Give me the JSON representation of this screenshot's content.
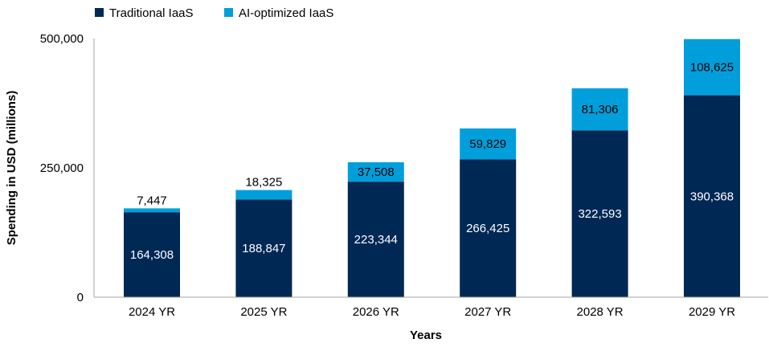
{
  "chart_data": {
    "type": "bar",
    "stacked": true,
    "title": "",
    "xlabel": "Years",
    "ylabel": "Spending in USD (millions)",
    "ylim": [
      0,
      500000
    ],
    "yticks": [
      0,
      250000,
      500000
    ],
    "ytick_labels": [
      "0",
      "250,000",
      "500,000"
    ],
    "grid": false,
    "legend_position": "top-left",
    "categories": [
      "2024 YR",
      "2025 YR",
      "2026 YR",
      "2027 YR",
      "2028 YR",
      "2029 YR"
    ],
    "series": [
      {
        "name": "Traditional IaaS",
        "color": "#002855",
        "label_color": "#ffffff",
        "values": [
          164308,
          188847,
          223344,
          266425,
          322593,
          390368
        ],
        "labels": [
          "164,308",
          "188,847",
          "223,344",
          "266,425",
          "322,593",
          "390,368"
        ]
      },
      {
        "name": "AI-optimized IaaS",
        "color": "#009fdb",
        "label_color": "#000000",
        "values": [
          7447,
          18325,
          37508,
          59829,
          81306,
          108625
        ],
        "labels": [
          "7,447",
          "18,325",
          "37,508",
          "59,829",
          "81,306",
          "108,625"
        ]
      }
    ]
  }
}
